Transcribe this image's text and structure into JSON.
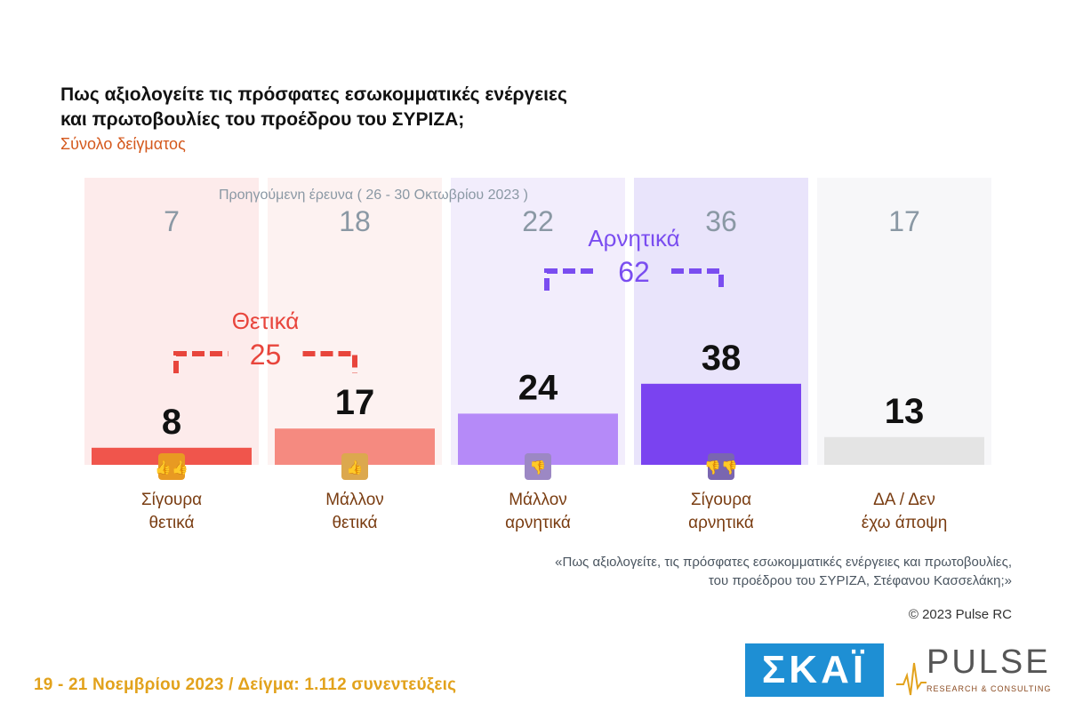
{
  "title_line1": "Πως αξιολογείτε τις πρόσφατες εσωκομματικές ενέργειες",
  "title_line2": "και πρωτοβουλίες του προέδρου του ΣΥΡΙΖΑ;",
  "subtitle": "Σύνολο δείγματος",
  "previous_label": "Προηγούμενη έρευνα  ( 26 - 30 Οκτωβρίου 2023 )",
  "chart_data": {
    "type": "bar",
    "categories": [
      [
        "Σίγουρα",
        "θετικά"
      ],
      [
        "Μάλλον",
        "θετικά"
      ],
      [
        "Μάλλον",
        "αρνητικά"
      ],
      [
        "Σίγουρα",
        "αρνητικά"
      ],
      [
        "ΔΑ / Δεν",
        "έχω άποψη"
      ]
    ],
    "series": [
      {
        "name": "",
        "values": [
          8,
          17,
          24,
          38,
          13
        ]
      },
      {
        "name": "Προηγούμενη έρευνα  ( 26 - 30 Οκτωβρίου 2023 )",
        "values": [
          7,
          18,
          22,
          36,
          17
        ]
      }
    ],
    "colors": {
      "bars": [
        "#f0554c",
        "#f58a80",
        "#b58af8",
        "#7a43f0",
        "#e4e4e4"
      ],
      "panels": [
        "#fdebeb",
        "#fdf2f1",
        "#f2edfc",
        "#e9e4fb",
        "#f7f7f9"
      ],
      "icons": [
        "#e89a22",
        "#dca84e",
        "#9c88c4",
        "#7a66b0"
      ],
      "positive": "#e8453c",
      "negative": "#7a4df0",
      "previous_text": "#8a98a4",
      "category_text": "#7a3d12"
    },
    "icons": [
      "two-thumbs-up-icon",
      "thumb-up-icon",
      "thumb-down-icon",
      "two-thumbs-down-icon",
      ""
    ],
    "groups": [
      {
        "label": "Θετικά",
        "total": "25"
      },
      {
        "label": "Αρνητικά",
        "total": "62"
      }
    ]
  },
  "quote_line1": "«Πως αξιολογείτε, τις πρόσφατες εσωκομματικές ενέργειες και πρωτοβουλίες,",
  "quote_line2": "του προέδρου του ΣΥΡΙΖΑ, Στέφανου Κασσελάκη;»",
  "copyright": "© 2023 Pulse RC",
  "footer": "19 - 21  Νοεμβρίου  2023  /  Δείγμα:  1.112 συνεντεύξεις",
  "logos": {
    "skai": "ΣΚΑΪ",
    "pulse": "PULSE",
    "pulse_sub": "RESEARCH & CONSULTING"
  }
}
